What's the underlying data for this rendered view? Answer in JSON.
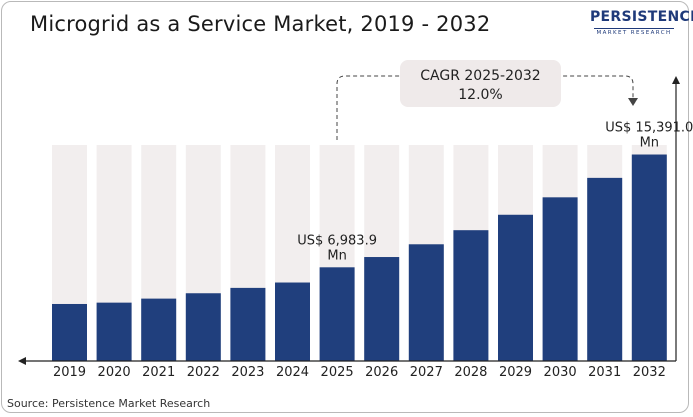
{
  "chart_data": {
    "type": "bar",
    "title": "Microgrid as a Service Market, 2019 - 2032",
    "categories": [
      "2019",
      "2020",
      "2021",
      "2022",
      "2023",
      "2024",
      "2025",
      "2026",
      "2027",
      "2028",
      "2029",
      "2030",
      "2031",
      "2032"
    ],
    "values": [
      4250,
      4350,
      4650,
      5050,
      5450,
      5850,
      6983.9,
      7750,
      8700,
      9750,
      10900,
      12200,
      13650,
      15391.0
    ],
    "ylim": [
      0,
      16100
    ],
    "grid": false,
    "legend": "none",
    "annotations": {
      "start_label": "US$ 6,983.9 Mn",
      "start_category": "2025",
      "end_label": "US$ 15,391.0 Mn",
      "end_category": "2032",
      "cagr_title": "CAGR 2025-2032",
      "cagr_value": "12.0%"
    },
    "colors": {
      "bar": "#203f7d",
      "track": "#f2eeee",
      "callout": "#efeaea",
      "axis": "#222222"
    }
  },
  "logo": {
    "name": "PERSISTENCE",
    "subtitle": "MARKET RESEARCH"
  },
  "source": "Source: Persistence Market Research"
}
